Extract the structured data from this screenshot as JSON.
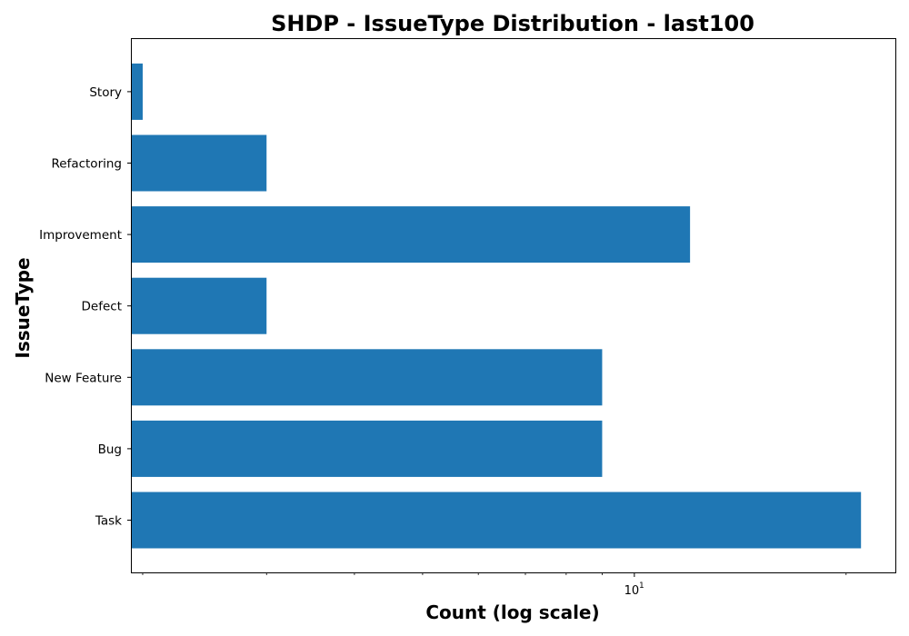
{
  "chart_data": {
    "type": "bar",
    "orientation": "horizontal",
    "title": "SHDP - IssueType Distribution - last100",
    "xlabel": "Count (log scale)",
    "ylabel": "IssueType",
    "x_scale": "log",
    "xlim": [
      1.93,
      23.5
    ],
    "categories": [
      "Task",
      "Bug",
      "New Feature",
      "Defect",
      "Improvement",
      "Refactoring",
      "Story"
    ],
    "values": [
      21,
      9,
      9,
      3,
      12,
      3,
      2
    ],
    "x_major_ticks": [
      {
        "value": 10,
        "base": "10",
        "exponent": "1"
      }
    ],
    "x_minor_ticks": [
      2,
      3,
      4,
      5,
      6,
      7,
      8,
      9,
      20
    ],
    "bar_color": "#1f77b4",
    "grid": false,
    "legend": "none"
  }
}
